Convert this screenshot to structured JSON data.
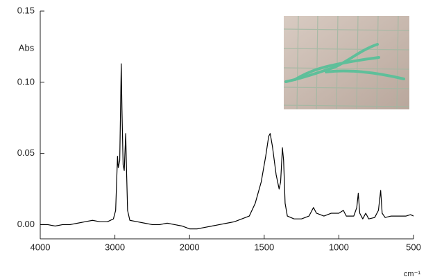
{
  "chart_data": {
    "type": "line",
    "y_label": "Abs",
    "x_label": "cm⁻¹",
    "xlim": [
      4000,
      500
    ],
    "xticks": [
      4000,
      3000,
      2000,
      1500,
      1000,
      500
    ],
    "ylim": [
      -0.01,
      0.15
    ],
    "yticks": [
      {
        "value": 0,
        "label": "0.00"
      },
      0.05,
      {
        "value": 0.1,
        "label": "0.10"
      },
      0.15
    ],
    "grid": false,
    "series": [
      {
        "color": "#000000",
        "x": [
          4000,
          3900,
          3800,
          3700,
          3600,
          3500,
          3400,
          3300,
          3200,
          3100,
          3020,
          2990,
          2965,
          2955,
          2935,
          2915,
          2905,
          2890,
          2875,
          2855,
          2845,
          2830,
          2800,
          2700,
          2600,
          2500,
          2400,
          2300,
          2200,
          2100,
          2000,
          1950,
          1900,
          1850,
          1800,
          1750,
          1700,
          1650,
          1600,
          1560,
          1520,
          1490,
          1470,
          1460,
          1445,
          1420,
          1400,
          1390,
          1378,
          1370,
          1360,
          1345,
          1300,
          1250,
          1200,
          1170,
          1150,
          1100,
          1050,
          1000,
          970,
          950,
          900,
          880,
          870,
          860,
          840,
          820,
          800,
          760,
          735,
          720,
          710,
          690,
          650,
          600,
          550,
          520,
          500
        ],
        "values": [
          0.0,
          0.0,
          -0.001,
          0.0,
          0.0,
          0.001,
          0.002,
          0.003,
          0.002,
          0.002,
          0.004,
          0.01,
          0.048,
          0.04,
          0.045,
          0.113,
          0.08,
          0.042,
          0.038,
          0.064,
          0.04,
          0.01,
          0.003,
          0.002,
          0.001,
          0.0,
          0.0,
          0.001,
          0.0,
          -0.001,
          -0.003,
          -0.003,
          -0.002,
          -0.001,
          0.0,
          0.001,
          0.002,
          0.004,
          0.006,
          0.015,
          0.03,
          0.048,
          0.062,
          0.064,
          0.055,
          0.035,
          0.025,
          0.03,
          0.054,
          0.045,
          0.015,
          0.006,
          0.004,
          0.004,
          0.006,
          0.012,
          0.008,
          0.006,
          0.008,
          0.008,
          0.01,
          0.006,
          0.006,
          0.012,
          0.022,
          0.008,
          0.004,
          0.008,
          0.004,
          0.005,
          0.01,
          0.024,
          0.008,
          0.005,
          0.006,
          0.006,
          0.006,
          0.007,
          0.006
        ]
      }
    ]
  }
}
